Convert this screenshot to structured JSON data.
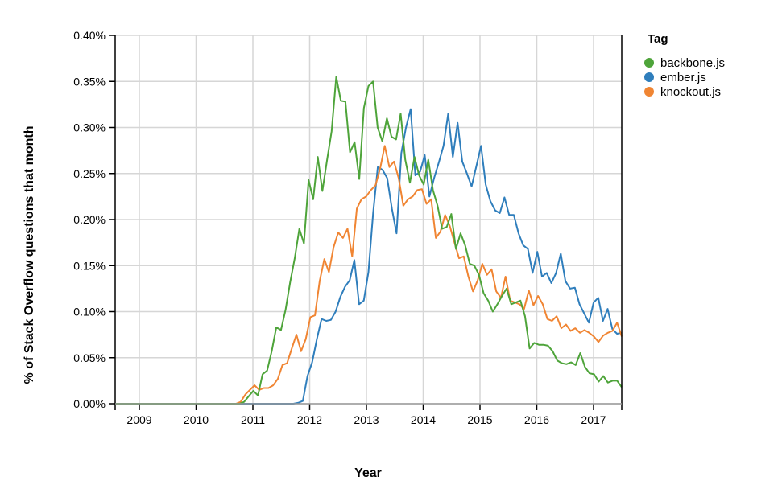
{
  "chart_data": {
    "type": "line",
    "title": "",
    "xlabel": "Year",
    "ylabel": "% of Stack Overflow questions that month",
    "x_ticks": [
      "2009",
      "2010",
      "2011",
      "2012",
      "2013",
      "2014",
      "2015",
      "2016",
      "2017"
    ],
    "y_ticks": [
      "0.00%",
      "0.05%",
      "0.10%",
      "0.15%",
      "0.20%",
      "0.25%",
      "0.30%",
      "0.35%",
      "0.40%"
    ],
    "ylim": [
      0,
      0.4
    ],
    "xlim": [
      "2008-08",
      "2017-07"
    ],
    "grid": true,
    "legend_title": "Tag",
    "legend_position": "right",
    "x_start": "2008-08",
    "x_step": "month",
    "series": [
      {
        "name": "backbone.js",
        "color": "#4ea43a",
        "values": [
          0,
          0,
          0,
          0,
          0,
          0,
          0,
          0,
          0,
          0,
          0,
          0,
          0,
          0,
          0,
          0,
          0,
          0,
          0,
          0,
          0,
          0,
          0,
          0,
          0,
          0,
          0,
          0,
          0.002,
          0.008,
          0.014,
          0.009,
          0.032,
          0.036,
          0.057,
          0.083,
          0.08,
          0.102,
          0.132,
          0.158,
          0.19,
          0.174,
          0.243,
          0.222,
          0.268,
          0.231,
          0.264,
          0.296,
          0.355,
          0.329,
          0.328,
          0.273,
          0.284,
          0.244,
          0.321,
          0.345,
          0.35,
          0.3,
          0.285,
          0.31,
          0.29,
          0.287,
          0.315,
          0.265,
          0.24,
          0.268,
          0.248,
          0.238,
          0.265,
          0.232,
          0.215,
          0.19,
          0.192,
          0.206,
          0.168,
          0.185,
          0.172,
          0.152,
          0.15,
          0.14,
          0.12,
          0.112,
          0.1,
          0.108,
          0.117,
          0.125,
          0.108,
          0.11,
          0.112,
          0.095,
          0.06,
          0.066,
          0.064,
          0.064,
          0.063,
          0.057,
          0.047,
          0.044,
          0.043,
          0.045,
          0.042,
          0.055,
          0.04,
          0.033,
          0.032,
          0.024,
          0.03,
          0.023,
          0.025,
          0.025,
          0.018
        ]
      },
      {
        "name": "ember.js",
        "color": "#2f7ebc",
        "values": [
          0,
          0,
          0,
          0,
          0,
          0,
          0,
          0,
          0,
          0,
          0,
          0,
          0,
          0,
          0,
          0,
          0,
          0,
          0,
          0,
          0,
          0,
          0,
          0,
          0,
          0,
          0,
          0,
          0,
          0,
          0,
          0,
          0,
          0,
          0,
          0,
          0,
          0,
          0,
          0.001,
          0.003,
          0.03,
          0.045,
          0.07,
          0.092,
          0.09,
          0.091,
          0.1,
          0.116,
          0.127,
          0.134,
          0.156,
          0.108,
          0.112,
          0.143,
          0.207,
          0.257,
          0.254,
          0.245,
          0.212,
          0.185,
          0.272,
          0.3,
          0.32,
          0.248,
          0.252,
          0.27,
          0.225,
          0.245,
          0.262,
          0.28,
          0.315,
          0.268,
          0.305,
          0.263,
          0.25,
          0.236,
          0.258,
          0.28,
          0.238,
          0.22,
          0.21,
          0.207,
          0.224,
          0.205,
          0.205,
          0.185,
          0.172,
          0.168,
          0.142,
          0.165,
          0.138,
          0.142,
          0.131,
          0.142,
          0.163,
          0.133,
          0.125,
          0.126,
          0.108,
          0.098,
          0.088,
          0.11,
          0.115,
          0.09,
          0.103,
          0.081,
          0.076,
          0.077
        ]
      },
      {
        "name": "knockout.js",
        "color": "#f08533",
        "values": [
          0,
          0,
          0,
          0,
          0,
          0,
          0,
          0,
          0,
          0,
          0,
          0,
          0,
          0,
          0,
          0,
          0,
          0,
          0,
          0,
          0,
          0,
          0,
          0,
          0,
          0,
          0,
          0.002,
          0.01,
          0.015,
          0.02,
          0.015,
          0.017,
          0.017,
          0.02,
          0.027,
          0.042,
          0.044,
          0.06,
          0.075,
          0.057,
          0.07,
          0.094,
          0.096,
          0.133,
          0.157,
          0.143,
          0.17,
          0.186,
          0.18,
          0.19,
          0.16,
          0.212,
          0.222,
          0.225,
          0.232,
          0.237,
          0.255,
          0.28,
          0.257,
          0.263,
          0.245,
          0.215,
          0.222,
          0.225,
          0.232,
          0.233,
          0.217,
          0.222,
          0.18,
          0.187,
          0.205,
          0.193,
          0.175,
          0.158,
          0.16,
          0.138,
          0.122,
          0.134,
          0.152,
          0.14,
          0.146,
          0.122,
          0.115,
          0.138,
          0.112,
          0.11,
          0.108,
          0.103,
          0.123,
          0.107,
          0.117,
          0.108,
          0.092,
          0.09,
          0.095,
          0.082,
          0.086,
          0.079,
          0.082,
          0.077,
          0.08,
          0.077,
          0.073,
          0.067,
          0.074,
          0.077,
          0.079,
          0.088,
          0.073
        ]
      }
    ]
  },
  "axes": {
    "x_title": "Year",
    "y_title": "% of Stack Overflow questions that month"
  },
  "legend": {
    "title": "Tag",
    "items": [
      {
        "label": "backbone.js",
        "color": "#4ea43a"
      },
      {
        "label": "ember.js",
        "color": "#2f7ebc"
      },
      {
        "label": "knockout.js",
        "color": "#f08533"
      }
    ]
  }
}
